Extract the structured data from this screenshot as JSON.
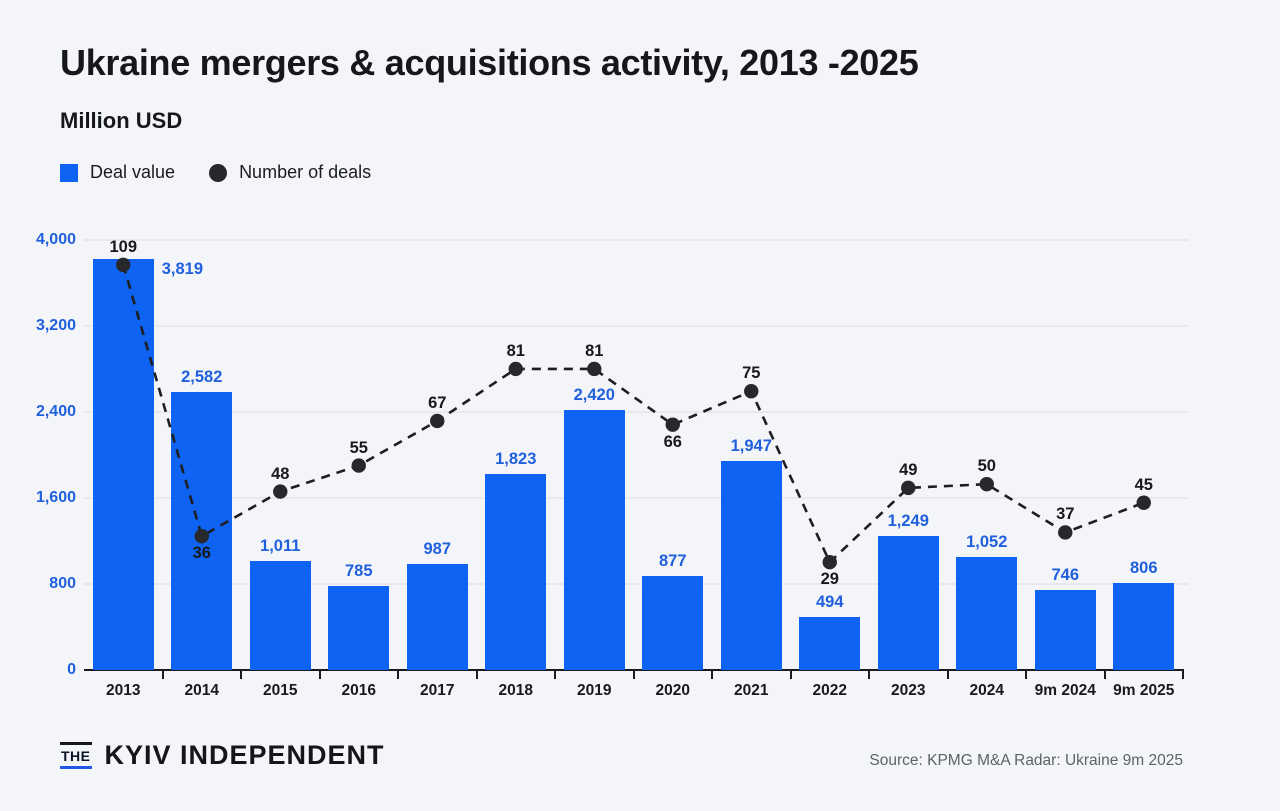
{
  "page": {
    "title": "Ukraine mergers & acquisitions activity, 2013 -2025",
    "subtitle": "Million USD"
  },
  "legend": [
    {
      "label": "Deal value",
      "marker": "blue-square"
    },
    {
      "label": "Number of deals",
      "marker": "dark-circle"
    }
  ],
  "chart_data": {
    "type": "bar",
    "subtype": "bar+line-combo",
    "title": "Ukraine mergers & acquisitions activity, 2013 -2025",
    "ylabel": "Million USD",
    "xlabel": "",
    "grid": "horizontal",
    "legend_position": "top-left",
    "categories": [
      "2013",
      "2014",
      "2015",
      "2016",
      "2017",
      "2018",
      "2019",
      "2020",
      "2021",
      "2022",
      "2023",
      "2024",
      "9m 2024",
      "9m 2025"
    ],
    "ylim": [
      0,
      4000
    ],
    "yticks": [
      {
        "value": 0,
        "label": "0"
      },
      {
        "value": 800,
        "label": "800"
      },
      {
        "value": 1600,
        "label": "1,600"
      },
      {
        "value": 2400,
        "label": "2,400"
      },
      {
        "value": 3200,
        "label": "3,200"
      },
      {
        "value": 4000,
        "label": "4,000"
      }
    ],
    "series": [
      {
        "name": "Deal value",
        "type": "bar",
        "unit": "Million USD",
        "values": [
          3819,
          2582,
          1011,
          785,
          987,
          1823,
          2420,
          877,
          1947,
          494,
          1249,
          1052,
          746,
          806
        ],
        "labels": [
          "3,819",
          "2,582",
          "1,011",
          "785",
          "987",
          "1,823",
          "2,420",
          "877",
          "1,947",
          "494",
          "1,249",
          "1,052",
          "746",
          "806"
        ],
        "label_beside_bar_indices": [
          0
        ]
      },
      {
        "name": "Number of deals",
        "type": "line",
        "style": "dashed-with-dots",
        "values": [
          109,
          36,
          48,
          55,
          67,
          81,
          81,
          66,
          75,
          29,
          49,
          50,
          37,
          45
        ],
        "label_below_point_indices": [
          1,
          7,
          9
        ]
      }
    ]
  },
  "colors": {
    "background": "#f4f5f8",
    "bar": "#0e63f2",
    "blue_label": "#2160dd",
    "text_dark": "#17191d",
    "line": "#1c1e22",
    "dot": "#26282c",
    "gridline": "#e7e9ee",
    "axis": "#181a1e",
    "source_gray": "#5d6269",
    "logo_underline": "#2257e8"
  },
  "footer": {
    "logo": {
      "the": "THE",
      "name": "KYIV INDEPENDENT"
    },
    "source": "Source: KPMG M&A Radar: Ukraine 9m 2025"
  }
}
